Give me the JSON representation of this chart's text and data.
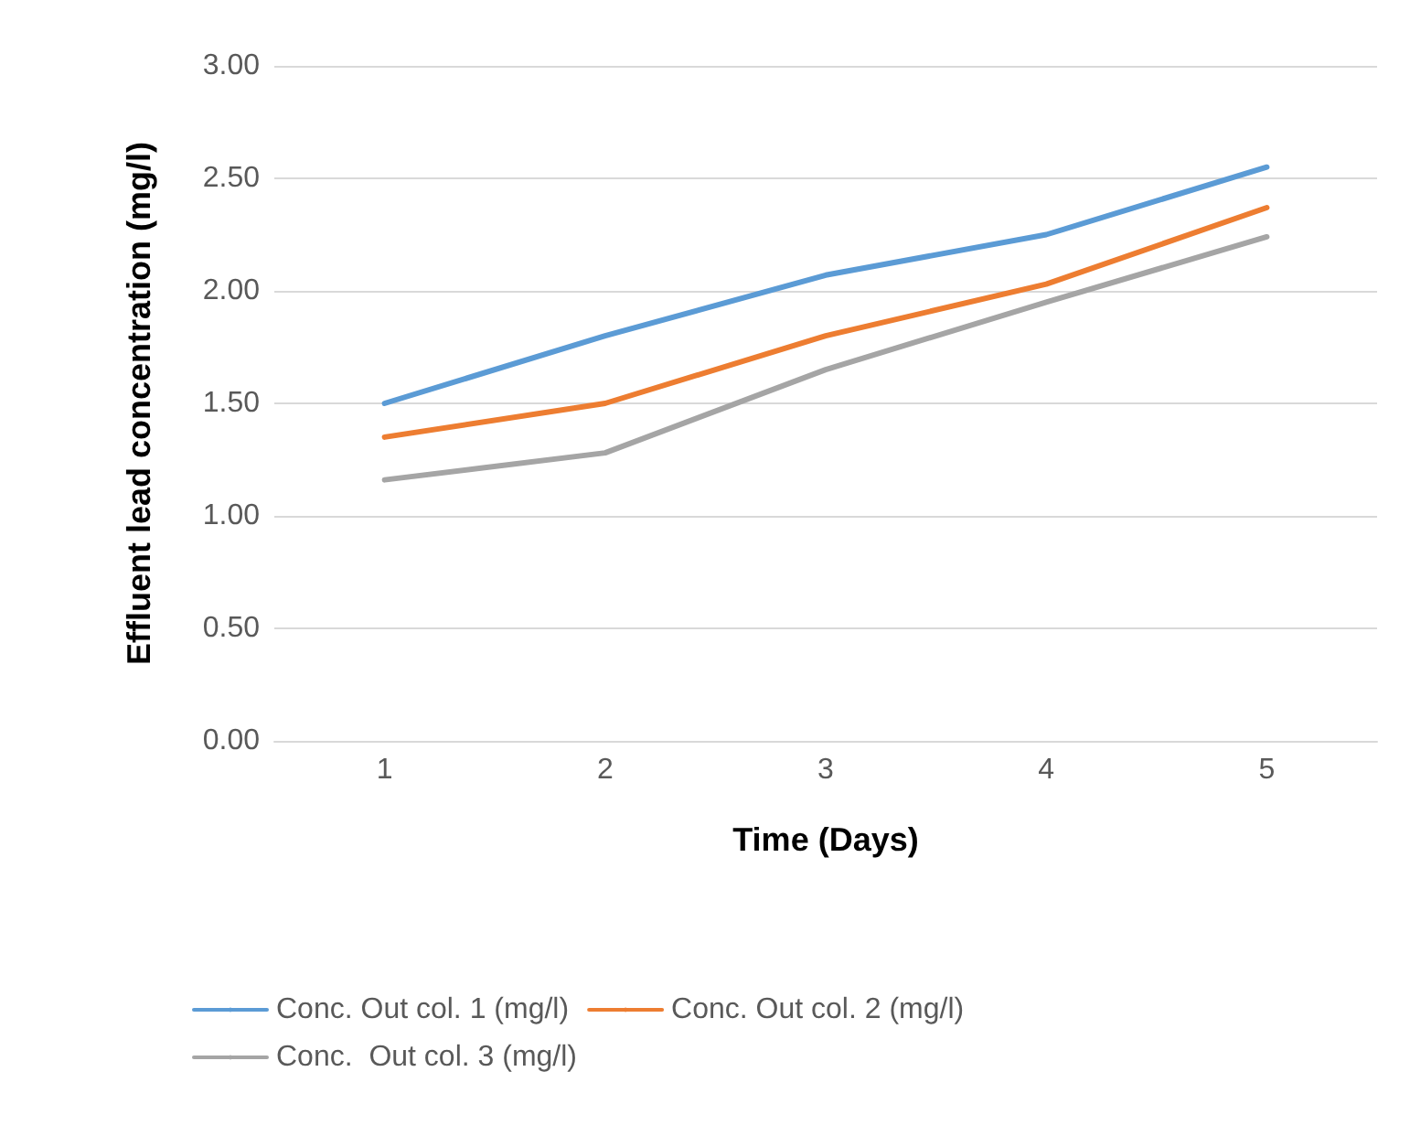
{
  "chart_data": {
    "type": "line",
    "xlabel": "Time (Days)",
    "ylabel": "Effluent lead concentration (mg/l)",
    "categories": [
      "1",
      "2",
      "3",
      "4",
      "5"
    ],
    "series": [
      {
        "name": "Conc. Out col. 1 (mg/l)",
        "color": "#5b9bd5",
        "values": [
          1.5,
          1.8,
          2.07,
          2.25,
          2.55
        ]
      },
      {
        "name": "Conc. Out col. 2 (mg/l)",
        "color": "#ed7d31",
        "values": [
          1.35,
          1.5,
          1.8,
          2.03,
          2.37
        ]
      },
      {
        "name": "Conc.  Out col. 3 (mg/l)",
        "color": "#a5a5a5",
        "values": [
          1.16,
          1.28,
          1.65,
          1.95,
          2.24
        ]
      }
    ],
    "ylim": [
      0,
      3
    ],
    "yticks": [
      {
        "value": 0,
        "label": "0.00"
      },
      {
        "value": 0.5,
        "label": "0.50"
      },
      {
        "value": 1,
        "label": "1.00"
      },
      {
        "value": 1.5,
        "label": "1.50"
      },
      {
        "value": 2,
        "label": "2.00"
      },
      {
        "value": 2.5,
        "label": "2.50"
      },
      {
        "value": 3,
        "label": "3.00"
      }
    ],
    "grid": "y",
    "legend": "bottom",
    "marker": "none",
    "line_style": "solid"
  }
}
